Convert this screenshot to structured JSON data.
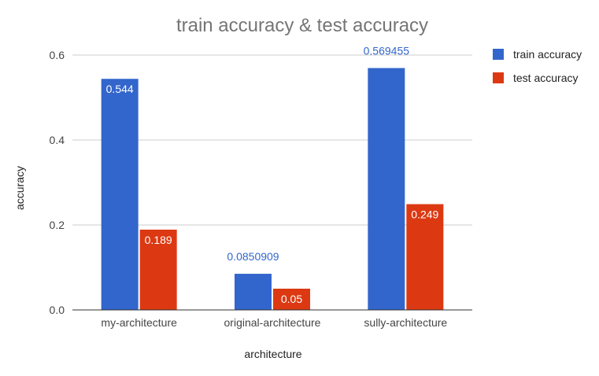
{
  "chart_data": {
    "type": "bar",
    "title": "train accuracy & test accuracy",
    "xlabel": "architecture",
    "ylabel": "accuracy",
    "categories": [
      "my-architecture",
      "original-architecture",
      "sully-architecture"
    ],
    "series": [
      {
        "name": "train accuracy",
        "color": "#3366cc",
        "values": [
          0.544,
          0.0850909,
          0.569455
        ],
        "labels": [
          "0.544",
          "0.0850909",
          "0.569455"
        ]
      },
      {
        "name": "test accuracy",
        "color": "#dc3912",
        "values": [
          0.189,
          0.05,
          0.249
        ],
        "labels": [
          "0.189",
          "0.05",
          "0.249"
        ]
      }
    ],
    "ylim": [
      0,
      0.6
    ],
    "yticks": [
      0.0,
      0.2,
      0.4,
      0.6
    ],
    "ytick_labels": [
      "0.0",
      "0.2",
      "0.4",
      "0.6"
    ],
    "grid": true,
    "legend_position": "right"
  }
}
